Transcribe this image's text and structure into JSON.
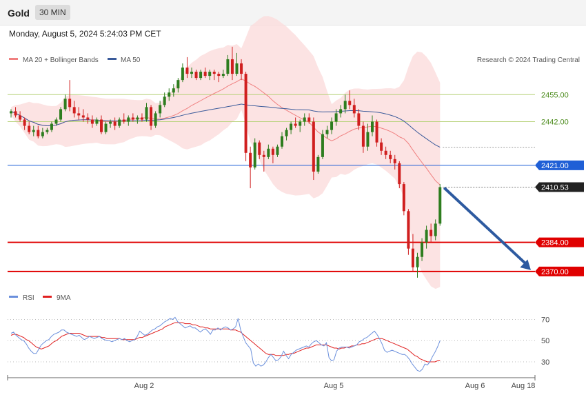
{
  "header": {
    "symbol": "Gold",
    "timeframe": "30 MIN",
    "datetime": "Monday, August 5, 2024 5:24:03 PM CET"
  },
  "legend": {
    "ma20": "MA 20 + Bollinger Bands",
    "ma50": "MA 50",
    "credit": "Research © 2024 Trading Central"
  },
  "rsi_legend": {
    "rsi": "RSI",
    "ma9": "9MA"
  },
  "colors": {
    "up": "#2e7d1f",
    "down": "#d01f1f",
    "band": "#fbdcdc",
    "ma20": "#f08080",
    "ma50": "#3a5a9a",
    "resistance": "#b7d27a",
    "pivot": "#1f5fd6",
    "support": "#e00000",
    "arrow": "#2d5aa0",
    "rsi": "#6a8fdc",
    "rsi_ma": "#e02020"
  },
  "chart_data": [
    {
      "type": "candlestick",
      "title": "Gold",
      "timeframe": "30 MIN",
      "x_ticks": [
        "Aug 2",
        "Aug 5",
        "Aug 6",
        "Aug 18"
      ],
      "y_levels": [
        {
          "label": "2455.00",
          "value": 2455.0,
          "kind": "resistance"
        },
        {
          "label": "2442.00",
          "value": 2442.0,
          "kind": "resistance"
        },
        {
          "label": "2421.00",
          "value": 2421.0,
          "kind": "pivot"
        },
        {
          "label": "2410.53",
          "value": 2410.53,
          "kind": "last"
        },
        {
          "label": "2384.00",
          "value": 2384.0,
          "kind": "support"
        },
        {
          "label": "2370.00",
          "value": 2370.0,
          "kind": "support"
        }
      ],
      "ylim": [
        2363,
        2469
      ],
      "series": [
        {
          "name": "Gold",
          "ohlc": [
            [
              2446,
              2448,
              2444,
              2447
            ],
            [
              2447,
              2449,
              2444,
              2445
            ],
            [
              2445,
              2447,
              2442,
              2443
            ],
            [
              2443,
              2444,
              2438,
              2440
            ],
            [
              2440,
              2442,
              2436,
              2437
            ],
            [
              2437,
              2440,
              2435,
              2438
            ],
            [
              2438,
              2440,
              2434,
              2435
            ],
            [
              2435,
              2439,
              2434,
              2437
            ],
            [
              2437,
              2439,
              2436,
              2438
            ],
            [
              2438,
              2442,
              2437,
              2441
            ],
            [
              2441,
              2444,
              2440,
              2443
            ],
            [
              2443,
              2449,
              2442,
              2448
            ],
            [
              2448,
              2455,
              2447,
              2453
            ],
            [
              2453,
              2462,
              2447,
              2449
            ],
            [
              2449,
              2452,
              2444,
              2446
            ],
            [
              2446,
              2449,
              2443,
              2445
            ],
            [
              2445,
              2448,
              2442,
              2444
            ],
            [
              2444,
              2446,
              2441,
              2443
            ],
            [
              2443,
              2445,
              2439,
              2441
            ],
            [
              2441,
              2444,
              2440,
              2443
            ],
            [
              2443,
              2445,
              2436,
              2437
            ],
            [
              2437,
              2442,
              2436,
              2441
            ],
            [
              2441,
              2443,
              2439,
              2442
            ],
            [
              2442,
              2444,
              2438,
              2440
            ],
            [
              2440,
              2444,
              2439,
              2443
            ],
            [
              2443,
              2446,
              2441,
              2442
            ],
            [
              2442,
              2445,
              2440,
              2444
            ],
            [
              2444,
              2446,
              2442,
              2443
            ],
            [
              2443,
              2445,
              2441,
              2444
            ],
            [
              2444,
              2446,
              2442,
              2443
            ],
            [
              2443,
              2451,
              2442,
              2449
            ],
            [
              2449,
              2450,
              2438,
              2440
            ],
            [
              2440,
              2447,
              2439,
              2446
            ],
            [
              2446,
              2452,
              2444,
              2450
            ],
            [
              2450,
              2456,
              2449,
              2454
            ],
            [
              2454,
              2458,
              2452,
              2456
            ],
            [
              2456,
              2460,
              2454,
              2458
            ],
            [
              2458,
              2463,
              2456,
              2462
            ],
            [
              2462,
              2470,
              2461,
              2468
            ],
            [
              2468,
              2473,
              2463,
              2465
            ],
            [
              2465,
              2468,
              2463,
              2466
            ],
            [
              2466,
              2467,
              2462,
              2463
            ],
            [
              2463,
              2467,
              2462,
              2466
            ],
            [
              2466,
              2468,
              2463,
              2464
            ],
            [
              2464,
              2467,
              2462,
              2466
            ],
            [
              2466,
              2467,
              2462,
              2465
            ],
            [
              2465,
              2466,
              2461,
              2464
            ],
            [
              2464,
              2467,
              2463,
              2465
            ],
            [
              2465,
              2474,
              2464,
              2472
            ],
            [
              2472,
              2478,
              2462,
              2465
            ],
            [
              2465,
              2475,
              2464,
              2470
            ],
            [
              2470,
              2472,
              2462,
              2465
            ],
            [
              2465,
              2466,
              2423,
              2427
            ],
            [
              2427,
              2430,
              2410,
              2420
            ],
            [
              2420,
              2434,
              2419,
              2432
            ],
            [
              2432,
              2433,
              2424,
              2426
            ],
            [
              2426,
              2428,
              2418,
              2425
            ],
            [
              2425,
              2431,
              2424,
              2429
            ],
            [
              2429,
              2430,
              2422,
              2426
            ],
            [
              2426,
              2431,
              2425,
              2430
            ],
            [
              2430,
              2437,
              2429,
              2435
            ],
            [
              2435,
              2439,
              2433,
              2438
            ],
            [
              2438,
              2442,
              2436,
              2441
            ],
            [
              2441,
              2444,
              2439,
              2440
            ],
            [
              2440,
              2443,
              2437,
              2442
            ],
            [
              2442,
              2446,
              2440,
              2444
            ],
            [
              2444,
              2446,
              2441,
              2442
            ],
            [
              2442,
              2444,
              2414,
              2418
            ],
            [
              2418,
              2426,
              2417,
              2425
            ],
            [
              2425,
              2438,
              2424,
              2436
            ],
            [
              2436,
              2440,
              2434,
              2438
            ],
            [
              2438,
              2444,
              2436,
              2442
            ],
            [
              2442,
              2448,
              2440,
              2446
            ],
            [
              2446,
              2450,
              2444,
              2448
            ],
            [
              2448,
              2455,
              2446,
              2452
            ],
            [
              2452,
              2457,
              2448,
              2450
            ],
            [
              2450,
              2453,
              2444,
              2446
            ],
            [
              2446,
              2448,
              2438,
              2440
            ],
            [
              2440,
              2442,
              2427,
              2430
            ],
            [
              2430,
              2441,
              2428,
              2437
            ],
            [
              2437,
              2445,
              2435,
              2442
            ],
            [
              2442,
              2443,
              2430,
              2432
            ],
            [
              2432,
              2434,
              2426,
              2428
            ],
            [
              2428,
              2430,
              2424,
              2426
            ],
            [
              2426,
              2428,
              2422,
              2424
            ],
            [
              2424,
              2426,
              2419,
              2422
            ],
            [
              2422,
              2423,
              2410,
              2412
            ],
            [
              2412,
              2413,
              2397,
              2399
            ],
            [
              2399,
              2400,
              2378,
              2381
            ],
            [
              2381,
              2388,
              2370,
              2372
            ],
            [
              2372,
              2379,
              2367,
              2377
            ],
            [
              2377,
              2386,
              2375,
              2384
            ],
            [
              2384,
              2392,
              2381,
              2390
            ],
            [
              2390,
              2393,
              2384,
              2387
            ],
            [
              2387,
              2395,
              2385,
              2393
            ],
            [
              2393,
              2412,
              2392,
              2410.53
            ]
          ]
        }
      ]
    },
    {
      "type": "line",
      "title": "RSI",
      "x_ticks": [
        "Aug 2",
        "Aug 5",
        "Aug 6",
        "Aug 18"
      ],
      "y_ticks": [
        70,
        50,
        30
      ],
      "ylim": [
        17,
        82
      ],
      "series": [
        {
          "name": "RSI",
          "values": [
            57,
            58,
            55,
            53,
            51,
            50,
            47,
            43,
            40,
            38,
            38,
            42,
            46,
            48,
            50,
            51,
            54,
            56,
            57,
            58,
            60,
            60,
            58,
            57,
            56,
            55,
            54,
            55,
            53,
            51,
            52,
            54,
            53,
            52,
            53,
            54,
            52,
            51,
            50,
            50,
            49,
            50,
            51,
            52,
            51,
            52,
            50,
            49,
            50,
            51,
            54,
            59,
            57,
            55,
            56,
            58,
            60,
            61,
            63,
            64,
            66,
            68,
            69,
            71,
            70,
            72,
            68,
            66,
            64,
            62,
            63,
            64,
            62,
            62,
            60,
            58,
            60,
            61,
            59,
            56,
            60,
            60,
            62,
            60,
            62,
            63,
            62,
            60,
            61,
            63,
            71,
            60,
            54,
            48,
            45,
            42,
            29,
            26,
            28,
            26,
            27,
            30,
            34,
            37,
            34,
            31,
            32,
            35,
            40,
            36,
            33,
            37,
            39,
            41,
            42,
            43,
            44,
            45,
            44,
            47,
            49,
            50,
            48,
            46,
            45,
            48,
            34,
            31,
            32,
            40,
            43,
            44,
            44,
            44,
            43,
            44,
            45,
            46,
            49,
            50,
            52,
            53,
            55,
            57,
            59,
            56,
            52,
            47,
            41,
            39,
            40,
            41,
            40,
            39,
            38,
            37,
            37,
            35,
            32,
            28,
            25,
            22,
            21,
            23,
            28,
            27,
            30,
            35,
            39,
            44,
            50
          ]
        },
        {
          "name": "9MA",
          "values": [
            55,
            56,
            56,
            55,
            54,
            53,
            51,
            50,
            48,
            46,
            44,
            43,
            42,
            43,
            44,
            45,
            47,
            49,
            50,
            52,
            54,
            55,
            56,
            57,
            57,
            57,
            57,
            57,
            56,
            55,
            54,
            54,
            54,
            54,
            54,
            54,
            53,
            53,
            52,
            52,
            52,
            52,
            52,
            52,
            51,
            51,
            51,
            51,
            51,
            51,
            52,
            53,
            53,
            54,
            55,
            56,
            57,
            58,
            59,
            60,
            61,
            63,
            64,
            65,
            66,
            67,
            67,
            67,
            67,
            66,
            66,
            66,
            65,
            65,
            64,
            63,
            63,
            62,
            62,
            61,
            61,
            61,
            61,
            61,
            61,
            61,
            61,
            60,
            60,
            60,
            59,
            58,
            56,
            54,
            52,
            50,
            48,
            46,
            44,
            42,
            40,
            38,
            37,
            37,
            37,
            36,
            36,
            36,
            36,
            37,
            37,
            38,
            38,
            39,
            40,
            41,
            42,
            43,
            43,
            44,
            45,
            46,
            46,
            46,
            46,
            46,
            45,
            44,
            43,
            43,
            42,
            43,
            43,
            44,
            44,
            45,
            45,
            46,
            46,
            47,
            47,
            48,
            49,
            50,
            51,
            52,
            52,
            52,
            51,
            50,
            49,
            48,
            47,
            46,
            45,
            44,
            43,
            42,
            40,
            38,
            36,
            35,
            33,
            32,
            31,
            30,
            30,
            30,
            30,
            31,
            31
          ]
        }
      ]
    }
  ]
}
